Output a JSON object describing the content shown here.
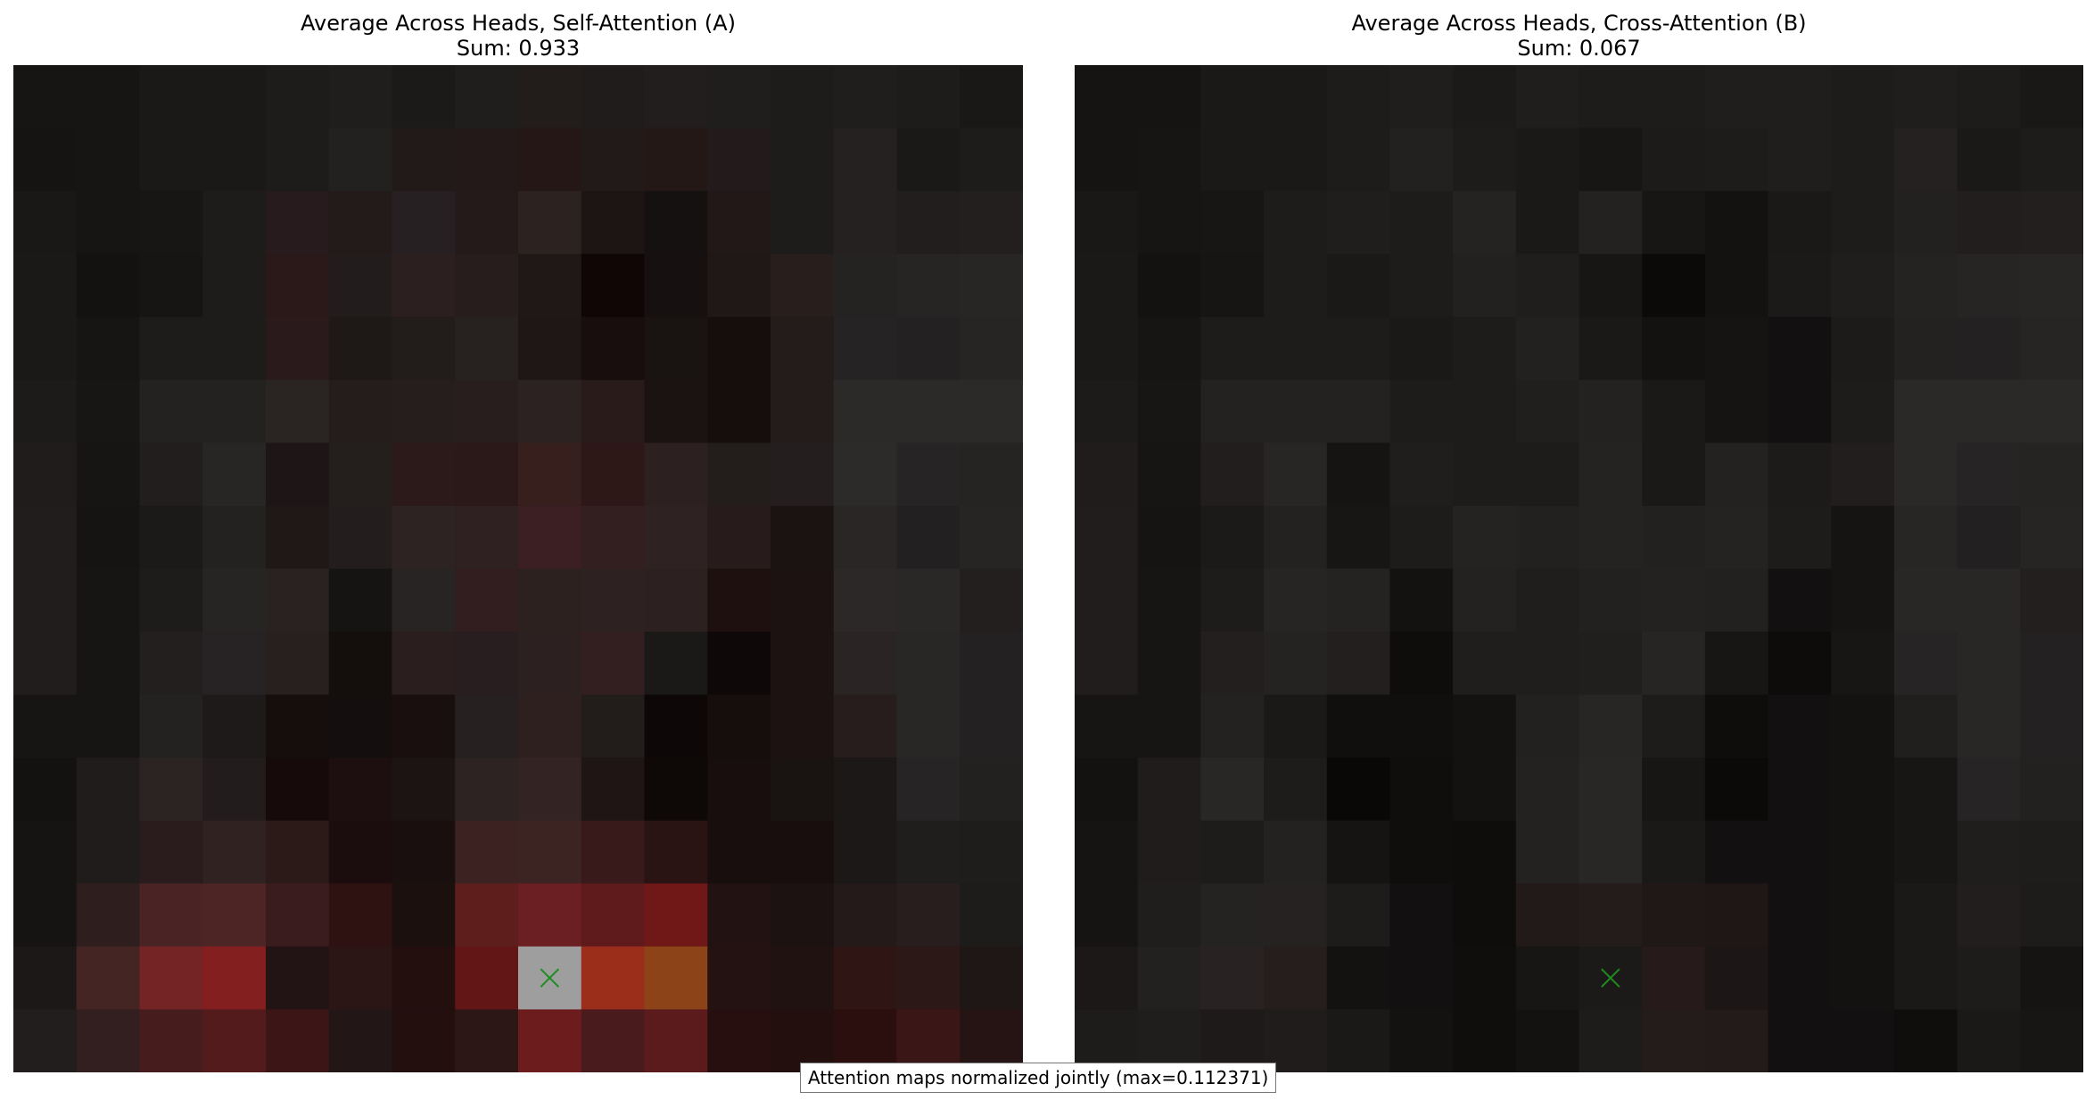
{
  "colors": {
    "background": "#ffffff",
    "marker": "#1f8c1f",
    "note_border": "#777777"
  },
  "footer_note": "Attention maps normalized jointly (max=0.112371)",
  "chart_data": [
    {
      "type": "heatmap",
      "title": "Average Across Heads, Self-Attention (A)",
      "subtitle": "Sum: 0.933",
      "grid": false,
      "axes": false,
      "rows": 16,
      "cols": 16,
      "marker": {
        "symbol": "x",
        "row": 14,
        "col": 8
      },
      "colors": [
        [
          "#171514",
          "#171514",
          "#1b1918",
          "#1b1918",
          "#1e1c1b",
          "#201e1d",
          "#1c1a19",
          "#201e1d",
          "#221c1b",
          "#1f1c1b",
          "#221e1d",
          "#201e1d",
          "#1e1c1b",
          "#201e1d",
          "#1e1c1b",
          "#1a1817"
        ],
        [
          "#161413",
          "#171514",
          "#1b1918",
          "#1b1918",
          "#1e1c1b",
          "#232120",
          "#221a19",
          "#231919",
          "#251716",
          "#221a19",
          "#241817",
          "#231b1b",
          "#1e1c1b",
          "#242120",
          "#1b1918",
          "#1e1c1b"
        ],
        [
          "#1a1817",
          "#171514",
          "#181615",
          "#1e1c1b",
          "#271b1d",
          "#231b1a",
          "#262022",
          "#251a1a",
          "#2c2220",
          "#1c1514",
          "#161111",
          "#221817",
          "#1e1c1b",
          "#242120",
          "#211e1d",
          "#231f1f"
        ],
        [
          "#1b1918",
          "#141211",
          "#171514",
          "#1e1c1b",
          "#2b1818",
          "#221c1c",
          "#2c1f1f",
          "#261d1c",
          "#201817",
          "#0f0605",
          "#161010",
          "#201816",
          "#281f1d",
          "#252222",
          "#272424",
          "#282625"
        ],
        [
          "#1b1918",
          "#171514",
          "#1e1c1b",
          "#1e1c1b",
          "#2b1a1b",
          "#1e1817",
          "#221c1b",
          "#272120",
          "#1e1716",
          "#170e0d",
          "#191312",
          "#150e0d",
          "#231c1b",
          "#252323",
          "#232121",
          "#272524"
        ],
        [
          "#1d1b1a",
          "#181615",
          "#242221",
          "#242221",
          "#2a2422",
          "#251d1c",
          "#261e1d",
          "#281e1e",
          "#2c2222",
          "#2a1b1b",
          "#1b1312",
          "#150e0d",
          "#241c1b",
          "#2c2a29",
          "#2c2a29",
          "#2c2a29"
        ],
        [
          "#201c1b",
          "#171514",
          "#211e1d",
          "#282625",
          "#1e1616",
          "#241e1d",
          "#2c1a1a",
          "#2b1819",
          "#371f1e",
          "#2d1717",
          "#2c2020",
          "#231d1c",
          "#241f1e",
          "#2c2b2a",
          "#262424",
          "#262423"
        ],
        [
          "#211d1c",
          "#161413",
          "#1c1a19",
          "#242221",
          "#1f1817",
          "#231e1d",
          "#2c2322",
          "#2f2021",
          "#3b1f22",
          "#331f1f",
          "#2f2222",
          "#271b1b",
          "#1b1312",
          "#292625",
          "#222020",
          "#272524"
        ],
        [
          "#211d1c",
          "#171514",
          "#1e1c1b",
          "#272524",
          "#292221",
          "#161413",
          "#272423",
          "#321e1f",
          "#2d2120",
          "#2d2221",
          "#2c2120",
          "#1e100f",
          "#1b1211",
          "#2b2827",
          "#2a2827",
          "#231f1f"
        ],
        [
          "#211d1c",
          "#171514",
          "#231f1f",
          "#272223",
          "#281f1f",
          "#140e0d",
          "#2a1e1e",
          "#281e1f",
          "#2c2120",
          "#331f1f",
          "#1b1818",
          "#0f0808",
          "#1b1211",
          "#2a2424",
          "#292626",
          "#232121"
        ],
        [
          "#171514",
          "#171514",
          "#242221",
          "#1d1a19",
          "#150e0d",
          "#150e0e",
          "#190f0f",
          "#262120",
          "#2f2020",
          "#221c1b",
          "#0e0707",
          "#160e0d",
          "#1b1211",
          "#271d1d",
          "#292726",
          "#232121"
        ],
        [
          "#141211",
          "#1f1c1b",
          "#2c2423",
          "#221c1c",
          "#160b0a",
          "#1d0f0f",
          "#1b1413",
          "#2c2322",
          "#332423",
          "#1f1514",
          "#0e0807",
          "#170e0d",
          "#191311",
          "#1b1817",
          "#262424",
          "#232120"
        ],
        [
          "#161413",
          "#1f1c1b",
          "#2a1c1c",
          "#2f2221",
          "#2c1a19",
          "#1b0d0d",
          "#180f0e",
          "#3c2221",
          "#3c2423",
          "#381a1a",
          "#2a1313",
          "#170e0d",
          "#170e0d",
          "#1b1817",
          "#201e1d",
          "#1e1d1c"
        ],
        [
          "#161413",
          "#2f1e1e",
          "#4a2424",
          "#4d2524",
          "#3b1c1e",
          "#2e1212",
          "#1c100f",
          "#5e1e1c",
          "#6c1f22",
          "#5f1b1c",
          "#6f1817",
          "#231212",
          "#1b1211",
          "#231a19",
          "#271e1d",
          "#1e1c1b"
        ],
        [
          "#1c1817",
          "#452424",
          "#742424",
          "#831f1f",
          "#221414",
          "#2c1515",
          "#220f0e",
          "#621716",
          "#9e9e9e",
          "#9a2e1a",
          "#8c4318",
          "#241212",
          "#201211",
          "#2f1514",
          "#2b1817",
          "#1f1616"
        ],
        [
          "#221e1d",
          "#331f1f",
          "#471c1d",
          "#541b1d",
          "#3c1516",
          "#221616",
          "#220f0e",
          "#2c1616",
          "#6d1c1e",
          "#4a1b1d",
          "#5b1b1d",
          "#280f0f",
          "#220f0e",
          "#2a0f0e",
          "#3b1616",
          "#261414"
        ]
      ]
    },
    {
      "type": "heatmap",
      "title": "Average Across Heads, Cross-Attention (B)",
      "subtitle": "Sum: 0.067",
      "grid": false,
      "axes": false,
      "rows": 16,
      "cols": 16,
      "marker": {
        "symbol": "x",
        "row": 14,
        "col": 8
      },
      "colors": [
        [
          "#161413",
          "#161413",
          "#1b1918",
          "#1b1918",
          "#1e1c1b",
          "#201e1d",
          "#1c1a19",
          "#201e1d",
          "#1e1c1b",
          "#1e1c1b",
          "#201e1d",
          "#201e1d",
          "#1e1c1b",
          "#201e1d",
          "#1e1c1b",
          "#1a1817"
        ],
        [
          "#161413",
          "#171514",
          "#1b1918",
          "#1b1918",
          "#1e1c1b",
          "#232120",
          "#1e1c1b",
          "#1b1918",
          "#181615",
          "#1d1b1a",
          "#1e1c1b",
          "#201e1d",
          "#1e1c1b",
          "#242120",
          "#1b1918",
          "#1e1c1b"
        ],
        [
          "#1a1817",
          "#171514",
          "#181615",
          "#1e1c1b",
          "#201e1d",
          "#1e1c1b",
          "#252322",
          "#1b1918",
          "#242221",
          "#181615",
          "#141211",
          "#1b1918",
          "#1e1c1b",
          "#232120",
          "#211e1d",
          "#231f1f"
        ],
        [
          "#1b1918",
          "#141211",
          "#171514",
          "#1e1c1b",
          "#1b1918",
          "#1e1c1b",
          "#232120",
          "#201e1d",
          "#181615",
          "#0c0a09",
          "#141211",
          "#1c1a19",
          "#201e1d",
          "#252322",
          "#272424",
          "#282625"
        ],
        [
          "#1b1918",
          "#171514",
          "#1e1c1b",
          "#1e1c1b",
          "#1e1c1b",
          "#1b1918",
          "#1e1c1b",
          "#232120",
          "#1b1918",
          "#141211",
          "#161413",
          "#121010",
          "#1d1b1a",
          "#242221",
          "#232121",
          "#272524"
        ],
        [
          "#1d1b1a",
          "#181615",
          "#242221",
          "#242221",
          "#242221",
          "#1e1c1b",
          "#1e1c1b",
          "#211f1e",
          "#242221",
          "#1b1918",
          "#161413",
          "#121010",
          "#1e1c1b",
          "#2b2928",
          "#2b2928",
          "#2b2928"
        ],
        [
          "#201c1b",
          "#171514",
          "#211e1d",
          "#282625",
          "#161413",
          "#201e1d",
          "#1e1c1b",
          "#1e1c1b",
          "#252322",
          "#1b1918",
          "#242221",
          "#1d1b1a",
          "#211e1d",
          "#2b2928",
          "#262424",
          "#262423"
        ],
        [
          "#211d1c",
          "#161413",
          "#1c1a19",
          "#242221",
          "#181615",
          "#1e1c1b",
          "#252322",
          "#232120",
          "#252322",
          "#232120",
          "#252322",
          "#1e1c1b",
          "#161413",
          "#282625",
          "#222020",
          "#272524"
        ],
        [
          "#211d1c",
          "#171514",
          "#1e1c1b",
          "#272524",
          "#252322",
          "#141211",
          "#242221",
          "#201e1d",
          "#232120",
          "#242221",
          "#232120",
          "#121010",
          "#161413",
          "#292726",
          "#292726",
          "#231f1f"
        ],
        [
          "#211d1c",
          "#171514",
          "#221f1e",
          "#252322",
          "#221f1e",
          "#0f0d0c",
          "#201e1d",
          "#201e1d",
          "#211f1e",
          "#272524",
          "#181615",
          "#0e0c0b",
          "#181615",
          "#262424",
          "#292626",
          "#232121"
        ],
        [
          "#171514",
          "#171514",
          "#242221",
          "#1b1918",
          "#110f0e",
          "#110f0e",
          "#141211",
          "#232120",
          "#282625",
          "#1e1c1b",
          "#0f0d0c",
          "#121010",
          "#141211",
          "#211f1e",
          "#292726",
          "#232121"
        ],
        [
          "#141211",
          "#1f1c1b",
          "#292726",
          "#1e1c1b",
          "#0a0807",
          "#100e0d",
          "#141211",
          "#242221",
          "#292726",
          "#181615",
          "#0c0a09",
          "#121010",
          "#141211",
          "#181615",
          "#262424",
          "#232120"
        ],
        [
          "#161413",
          "#1f1c1b",
          "#1e1c1b",
          "#242221",
          "#161413",
          "#100e0d",
          "#0f0d0c",
          "#242221",
          "#292726",
          "#1b1918",
          "#121010",
          "#121010",
          "#141211",
          "#181615",
          "#201e1d",
          "#1e1d1c"
        ],
        [
          "#161413",
          "#201e1d",
          "#252322",
          "#262222",
          "#1e1c1b",
          "#121010",
          "#0f0d0c",
          "#221a19",
          "#231c1b",
          "#201817",
          "#1e1716",
          "#121010",
          "#141211",
          "#1b1918",
          "#211e1d",
          "#1e1c1b"
        ],
        [
          "#1b1817",
          "#232120",
          "#282322",
          "#251e1d",
          "#141211",
          "#121010",
          "#100e0d",
          "#181615",
          "#1c1a19",
          "#261a1a",
          "#1c1616",
          "#121010",
          "#141211",
          "#1b1918",
          "#1e1c1b",
          "#161413"
        ],
        [
          "#1e1c1b",
          "#201e1d",
          "#1e1a19",
          "#201c1b",
          "#1b1918",
          "#141211",
          "#100e0d",
          "#141211",
          "#1e1c1b",
          "#241c1b",
          "#221b1a",
          "#121010",
          "#121010",
          "#100e0d",
          "#1b1918",
          "#181615"
        ]
      ]
    }
  ]
}
